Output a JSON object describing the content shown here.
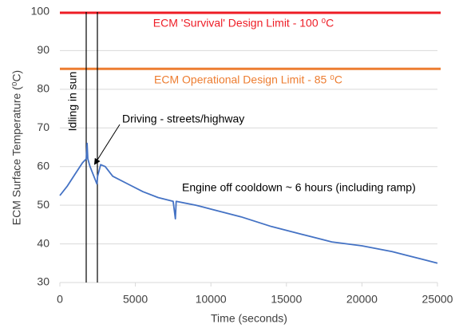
{
  "chart_data": {
    "type": "line",
    "x_label": "Time (seconds)",
    "y_label": "ECM Surface Temperature (⁰C)",
    "xlim": [
      0,
      25000
    ],
    "xticks": [
      0,
      5000,
      10000,
      15000,
      20000,
      25000
    ],
    "ylim": [
      30,
      100
    ],
    "yticks": [
      30,
      40,
      50,
      60,
      70,
      80,
      90,
      100
    ],
    "grid": true,
    "hlines": [
      {
        "value": 99.8,
        "color": "#ee1c25",
        "label": "ECM 'Survival' Design Limit - 100 ⁰C"
      },
      {
        "value": 85.3,
        "color": "#ed7d31",
        "label": "ECM Operational Design Limit - 85 ⁰C"
      }
    ],
    "vlines": [
      1744,
      2484
    ],
    "annotations": [
      "Idling in sun",
      "Driving - streets/highway",
      "Engine off cooldown ~ 6 hours (including ramp)"
    ],
    "series": [
      {
        "color": "#4472c4",
        "x": [
          0,
          500,
          1000,
          1500,
          1750,
          1800,
          1850,
          2000,
          2300,
          2450,
          2500,
          2700,
          3000,
          3500,
          4500,
          5500,
          6500,
          7500,
          7650,
          7700,
          9000,
          10000,
          12000,
          14000,
          15000,
          16000,
          17000,
          18000,
          20000,
          22000,
          24000,
          25000
        ],
        "values": [
          52.5,
          55,
          58,
          61,
          62,
          66,
          62,
          60,
          57,
          55.5,
          57.5,
          60.5,
          60,
          57.5,
          55.5,
          53.5,
          52,
          51,
          46.5,
          51,
          50,
          49,
          47,
          44.5,
          43.5,
          42.5,
          41.5,
          40.5,
          39.5,
          38,
          36,
          35
        ]
      }
    ]
  }
}
